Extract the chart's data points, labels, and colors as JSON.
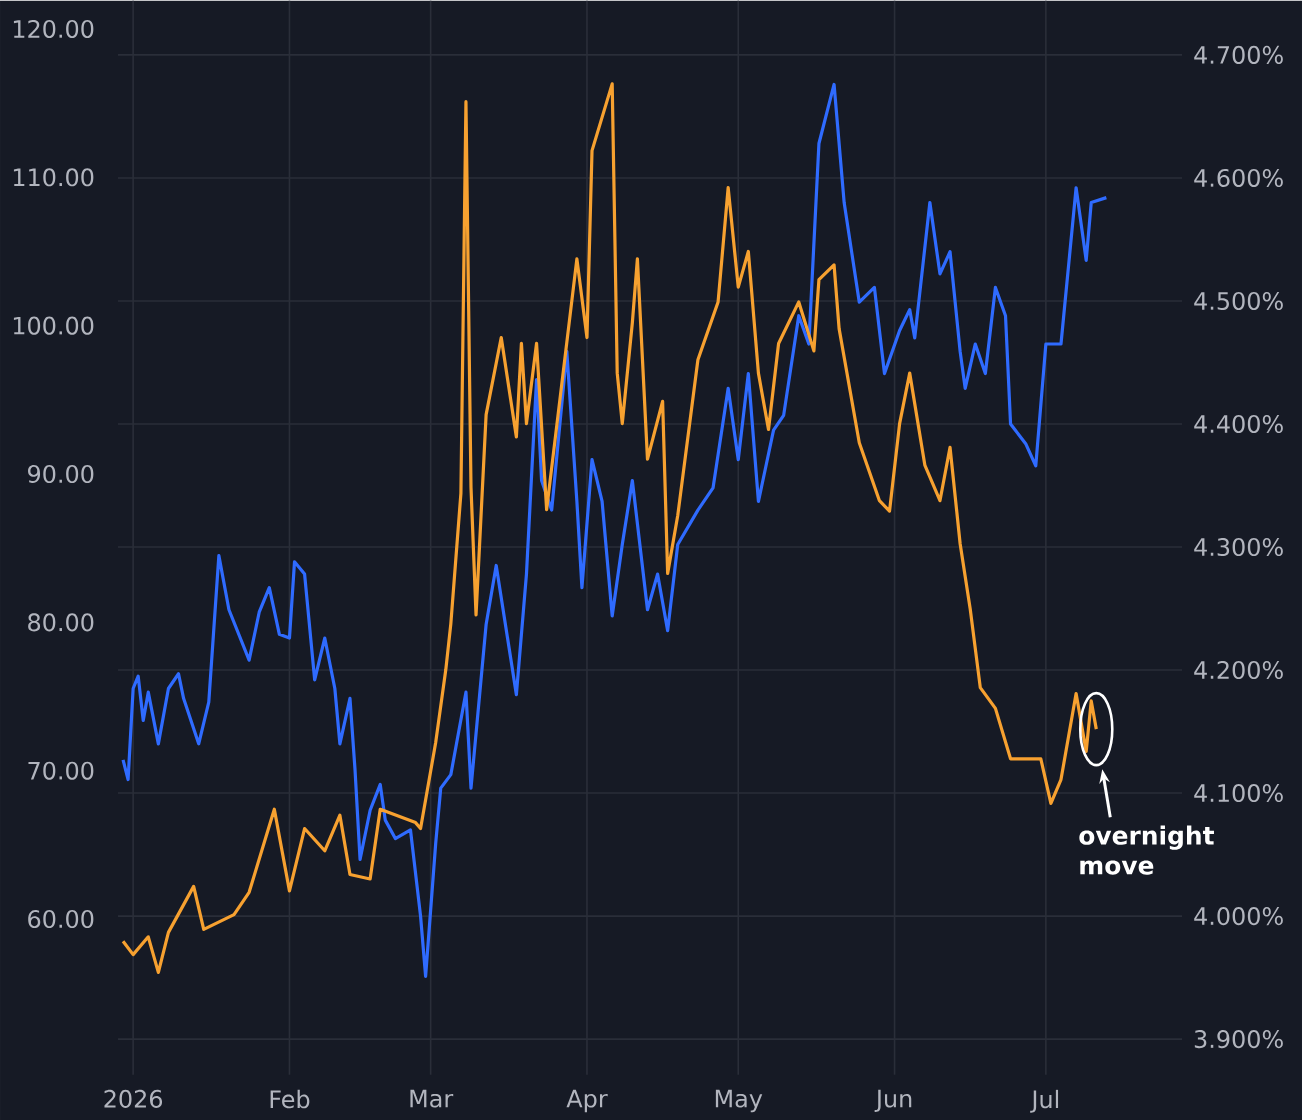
{
  "chart_data": {
    "type": "line",
    "xlim": [
      "2025-12-29",
      "2026-07-28"
    ],
    "ylim": [
      49.5,
      121.9
    ],
    "y2lim": [
      3.871,
      4.744
    ],
    "xticks": [
      {
        "value": "2026-01-01",
        "label": "2026"
      },
      {
        "value": "2026-02-01",
        "label": "Feb"
      },
      {
        "value": "2026-03-01",
        "label": "Mar"
      },
      {
        "value": "2026-04-01",
        "label": "Apr"
      },
      {
        "value": "2026-05-01",
        "label": "May"
      },
      {
        "value": "2026-06-01",
        "label": "Jun"
      },
      {
        "value": "2026-07-01",
        "label": "Jul"
      }
    ],
    "yticks": [
      {
        "value": 60,
        "label": "60.00"
      },
      {
        "value": 70,
        "label": "70.00"
      },
      {
        "value": 80,
        "label": "80.00"
      },
      {
        "value": 90,
        "label": "90.00"
      },
      {
        "value": 100,
        "label": "100.00"
      },
      {
        "value": 110,
        "label": "110.00"
      },
      {
        "value": 120,
        "label": "120.00"
      }
    ],
    "y2ticks": [
      {
        "value": 3.9,
        "label": "3.900%"
      },
      {
        "value": 4.0,
        "label": "4.000%"
      },
      {
        "value": 4.1,
        "label": "4.100%"
      },
      {
        "value": 4.2,
        "label": "4.200%"
      },
      {
        "value": 4.3,
        "label": "4.300%"
      },
      {
        "value": 4.4,
        "label": "4.400%"
      },
      {
        "value": 4.5,
        "label": "4.500%"
      },
      {
        "value": 4.6,
        "label": "4.600%"
      },
      {
        "value": 4.7,
        "label": "4.700%"
      }
    ],
    "grid": true,
    "series": [
      {
        "color": "#2f6bff",
        "axis": "y2",
        "x": [
          "2025-12-30",
          "2025-12-31",
          "2026-01-01",
          "2026-01-02",
          "2026-01-03",
          "2026-01-04",
          "2026-01-06",
          "2026-01-08",
          "2026-01-10",
          "2026-01-11",
          "2026-01-14",
          "2026-01-16",
          "2026-01-18",
          "2026-01-20",
          "2026-01-24",
          "2026-01-26",
          "2026-01-28",
          "2026-01-30",
          "2026-02-01",
          "2026-02-02",
          "2026-02-04",
          "2026-02-06",
          "2026-02-08",
          "2026-02-10",
          "2026-02-11",
          "2026-02-13",
          "2026-02-14",
          "2026-02-15",
          "2026-02-17",
          "2026-02-19",
          "2026-02-20",
          "2026-02-22",
          "2026-02-25",
          "2026-02-27",
          "2026-02-28",
          "2026-03-02",
          "2026-03-03",
          "2026-03-05",
          "2026-03-08",
          "2026-03-09",
          "2026-03-12",
          "2026-03-14",
          "2026-03-18",
          "2026-03-20",
          "2026-03-22",
          "2026-03-23",
          "2026-03-25",
          "2026-03-28",
          "2026-03-30",
          "2026-03-31",
          "2026-04-02",
          "2026-04-04",
          "2026-04-06",
          "2026-04-08",
          "2026-04-10",
          "2026-04-13",
          "2026-04-15",
          "2026-04-17",
          "2026-04-19",
          "2026-04-23",
          "2026-04-26",
          "2026-04-29",
          "2026-05-01",
          "2026-05-03",
          "2026-05-05",
          "2026-05-08",
          "2026-05-10",
          "2026-05-13",
          "2026-05-15",
          "2026-05-17",
          "2026-05-20",
          "2026-05-22",
          "2026-05-25",
          "2026-05-28",
          "2026-05-30",
          "2026-06-02",
          "2026-06-04",
          "2026-06-05",
          "2026-06-08",
          "2026-06-10",
          "2026-06-12",
          "2026-06-14",
          "2026-06-15",
          "2026-06-17",
          "2026-06-19",
          "2026-06-21",
          "2026-06-23",
          "2026-06-24",
          "2026-06-27",
          "2026-06-29",
          "2026-07-01",
          "2026-07-04",
          "2026-07-07",
          "2026-07-09",
          "2026-07-10",
          "2026-07-13"
        ],
        "values": [
          4.127,
          4.111,
          4.185,
          4.195,
          4.159,
          4.182,
          4.14,
          4.185,
          4.197,
          4.177,
          4.14,
          4.174,
          4.293,
          4.249,
          4.208,
          4.247,
          4.267,
          4.229,
          4.226,
          4.288,
          4.278,
          4.192,
          4.226,
          4.185,
          4.14,
          4.177,
          4.119,
          4.046,
          4.086,
          4.107,
          4.078,
          4.063,
          4.07,
          4.0,
          3.951,
          4.059,
          4.104,
          4.115,
          4.182,
          4.104,
          4.237,
          4.285,
          4.18,
          4.278,
          4.436,
          4.354,
          4.33,
          4.459,
          4.337,
          4.267,
          4.371,
          4.337,
          4.244,
          4.302,
          4.354,
          4.249,
          4.278,
          4.232,
          4.302,
          4.33,
          4.348,
          4.429,
          4.371,
          4.441,
          4.337,
          4.395,
          4.407,
          4.488,
          4.465,
          4.628,
          4.676,
          4.58,
          4.499,
          4.511,
          4.441,
          4.476,
          4.493,
          4.47,
          4.58,
          4.522,
          4.54,
          4.459,
          4.429,
          4.465,
          4.441,
          4.511,
          4.488,
          4.4,
          4.384,
          4.366,
          4.465,
          4.465,
          4.592,
          4.533,
          4.58,
          4.584
        ]
      },
      {
        "color": "#f7a130",
        "x": [
          "2025-12-30",
          "2026-01-01",
          "2026-01-04",
          "2026-01-06",
          "2026-01-08",
          "2026-01-13",
          "2026-01-15",
          "2026-01-21",
          "2026-01-24",
          "2026-01-29",
          "2026-02-01",
          "2026-02-04",
          "2026-02-08",
          "2026-02-11",
          "2026-02-13",
          "2026-02-17",
          "2026-02-19",
          "2026-02-26",
          "2026-02-27",
          "2026-03-02",
          "2026-03-04",
          "2026-03-05",
          "2026-03-07",
          "2026-03-08",
          "2026-03-09",
          "2026-03-10",
          "2026-03-12",
          "2026-03-15",
          "2026-03-18",
          "2026-03-19",
          "2026-03-20",
          "2026-03-22",
          "2026-03-24",
          "2026-03-30",
          "2026-04-01",
          "2026-04-02",
          "2026-04-06",
          "2026-04-07",
          "2026-04-08",
          "2026-04-10",
          "2026-04-11",
          "2026-04-13",
          "2026-04-16",
          "2026-04-17",
          "2026-04-19",
          "2026-04-23",
          "2026-04-27",
          "2026-04-29",
          "2026-05-01",
          "2026-05-03",
          "2026-05-05",
          "2026-05-07",
          "2026-05-09",
          "2026-05-13",
          "2026-05-16",
          "2026-05-17",
          "2026-05-20",
          "2026-05-21",
          "2026-05-25",
          "2026-05-29",
          "2026-05-31",
          "2026-06-02",
          "2026-06-04",
          "2026-06-07",
          "2026-06-10",
          "2026-06-12",
          "2026-06-14",
          "2026-06-16",
          "2026-06-18",
          "2026-06-21",
          "2026-06-24",
          "2026-06-30",
          "2026-07-02",
          "2026-07-04",
          "2026-07-07",
          "2026-07-09",
          "2026-07-10",
          "2026-07-11"
        ],
        "values": [
          58.5,
          57.6,
          58.8,
          56.4,
          59.1,
          62.2,
          59.3,
          60.3,
          61.8,
          67.4,
          61.9,
          66.1,
          64.6,
          67.0,
          63.0,
          62.7,
          67.4,
          66.5,
          66.1,
          71.9,
          76.8,
          79.9,
          88.7,
          115.1,
          89.1,
          80.5,
          94.0,
          99.2,
          92.5,
          98.8,
          93.4,
          98.8,
          87.6,
          104.5,
          99.2,
          111.8,
          116.3,
          96.8,
          93.4,
          100.2,
          104.5,
          91.0,
          94.9,
          83.3,
          87.2,
          97.7,
          101.6,
          109.3,
          102.6,
          105.0,
          96.8,
          93.0,
          98.8,
          101.6,
          98.3,
          103.1,
          104.1,
          99.8,
          92.1,
          88.2,
          87.5,
          93.4,
          96.8,
          90.6,
          88.2,
          91.8,
          85.3,
          80.9,
          75.6,
          74.2,
          70.8,
          70.8,
          67.8,
          69.4,
          75.2,
          71.3,
          74.7,
          72.8
        ]
      }
    ],
    "annotations": [
      "overnight move"
    ]
  }
}
